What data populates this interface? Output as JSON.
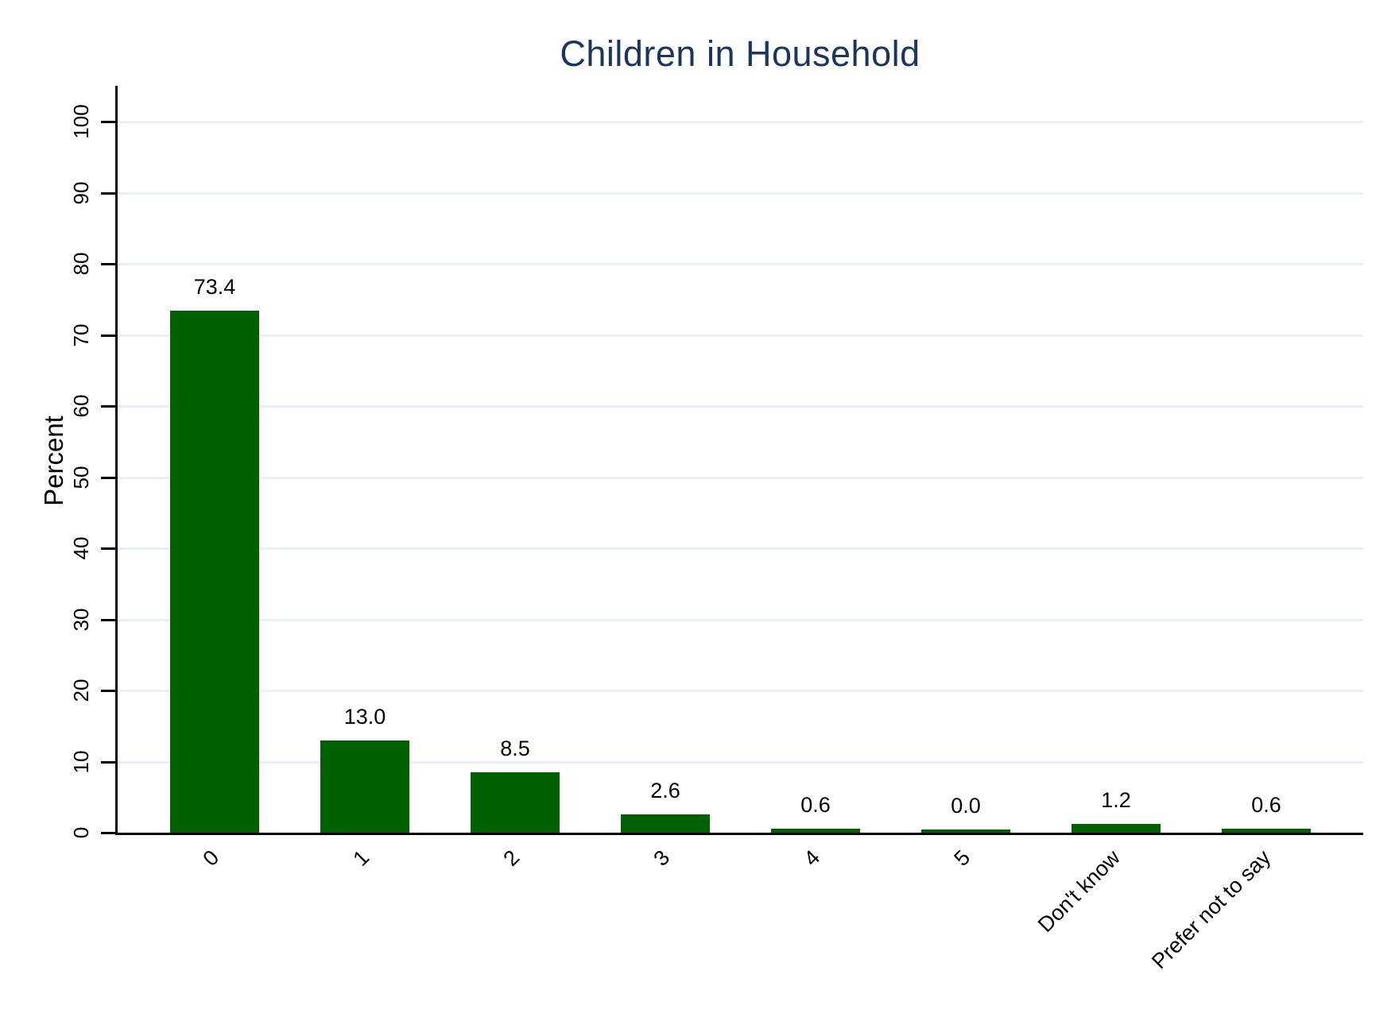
{
  "chart_data": {
    "type": "bar",
    "title": "Children in Household",
    "ylabel": "Percent",
    "xlabel": "",
    "categories": [
      "0",
      "1",
      "2",
      "3",
      "4",
      "5",
      "Don't know",
      "Prefer not to say"
    ],
    "values": [
      73.4,
      13.0,
      8.5,
      2.6,
      0.6,
      0.0,
      1.2,
      0.6
    ],
    "value_labels": [
      "73.4",
      "13.0",
      "8.5",
      "2.6",
      "0.6",
      "0.0",
      "1.2",
      "0.6"
    ],
    "ylim": [
      0,
      100
    ],
    "yticks": [
      0,
      10,
      20,
      30,
      40,
      50,
      60,
      70,
      80,
      90,
      100
    ],
    "grid": true,
    "legend": "none",
    "colors": {
      "bar": "#016001",
      "gridline": "#e9f0f5",
      "axis": "#000000",
      "title": "#1c355e",
      "text": "#000000"
    }
  }
}
